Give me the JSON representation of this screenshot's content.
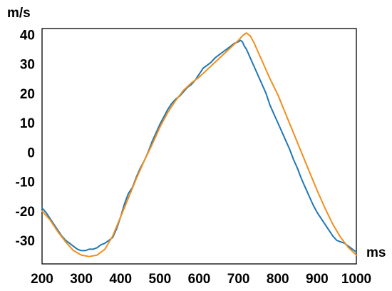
{
  "chart_data": {
    "type": "line",
    "title": "",
    "xlabel": "ms",
    "ylabel": "m/s",
    "xlim": [
      200,
      1000
    ],
    "ylim": [
      -38,
      42
    ],
    "xticks": [
      "200",
      "300",
      "400",
      "500",
      "600",
      "700",
      "800",
      "900",
      "1000"
    ],
    "yticks": [
      "40",
      "30",
      "20",
      "10",
      "0",
      "-10",
      "-20",
      "-30"
    ],
    "grid": false,
    "legend": "none",
    "series": [
      {
        "color": "#1f77b4",
        "style": "noisy measured",
        "x": [
          200,
          210,
          220,
          230,
          240,
          250,
          260,
          270,
          280,
          290,
          300,
          310,
          320,
          330,
          340,
          350,
          360,
          370,
          380,
          390,
          395,
          400,
          410,
          420,
          430,
          440,
          450,
          460,
          470,
          480,
          490,
          500,
          510,
          520,
          530,
          540,
          550,
          560,
          570,
          580,
          590,
          600,
          610,
          620,
          630,
          640,
          650,
          660,
          670,
          680,
          690,
          700,
          705,
          710,
          715,
          720,
          730,
          740,
          750,
          760,
          770,
          780,
          790,
          800,
          810,
          820,
          830,
          840,
          850,
          860,
          870,
          880,
          890,
          900,
          910,
          920,
          930,
          940,
          950,
          960,
          970,
          980,
          990,
          1000
        ],
        "y": [
          -19,
          -20.5,
          -22.5,
          -24.5,
          -26.5,
          -28.5,
          -30,
          -31,
          -32,
          -33,
          -33.5,
          -33.5,
          -33,
          -33,
          -32.5,
          -31.5,
          -31,
          -30,
          -29,
          -26,
          -24,
          -22,
          -17.5,
          -14,
          -12,
          -8.5,
          -5.5,
          -3,
          0,
          3.5,
          6.5,
          9.5,
          12,
          14.5,
          16.5,
          18,
          19,
          20.5,
          22,
          23,
          24.5,
          26.5,
          28.5,
          29.5,
          30.5,
          32,
          33,
          34,
          35,
          36,
          37,
          37.5,
          38,
          37.5,
          36,
          35,
          32,
          29,
          26,
          23,
          20,
          16,
          13,
          10,
          7,
          4,
          1,
          -2.5,
          -5.5,
          -9,
          -12,
          -15,
          -18,
          -20.5,
          -22.5,
          -24.5,
          -26.5,
          -28.5,
          -30,
          -30.5,
          -31,
          -32,
          -33,
          -34
        ]
      },
      {
        "color": "#f28e1c",
        "style": "smooth fitted",
        "x": [
          200,
          220,
          240,
          260,
          280,
          300,
          320,
          340,
          360,
          380,
          400,
          420,
          440,
          460,
          480,
          500,
          520,
          540,
          560,
          580,
          600,
          620,
          640,
          660,
          680,
          700,
          710,
          720,
          730,
          740,
          760,
          780,
          800,
          820,
          840,
          860,
          880,
          900,
          920,
          940,
          960,
          980,
          1000
        ],
        "y": [
          -20,
          -23,
          -27,
          -30.5,
          -33.5,
          -35,
          -35.5,
          -35,
          -33,
          -28.5,
          -22,
          -15.5,
          -9,
          -3,
          2.5,
          8.5,
          13.5,
          17.5,
          21,
          23.5,
          25.5,
          28,
          30.5,
          33,
          35.5,
          38,
          39.5,
          40.5,
          39.5,
          37,
          31,
          25,
          19.5,
          13,
          6.5,
          0,
          -6.5,
          -13,
          -19,
          -24.5,
          -29,
          -32.5,
          -35
        ]
      }
    ]
  }
}
